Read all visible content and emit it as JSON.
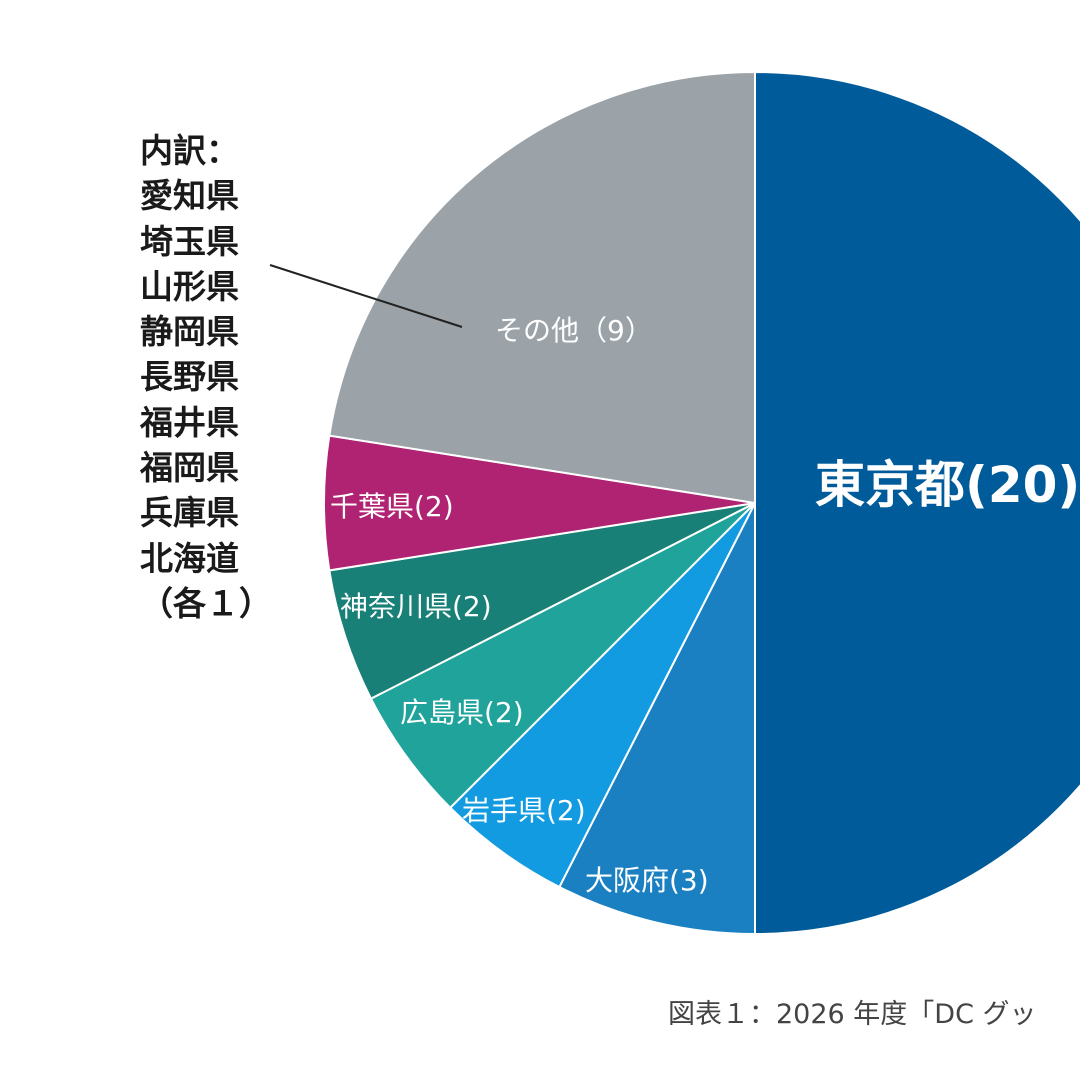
{
  "chart_data": {
    "type": "pie",
    "start_angle_deg": 0,
    "direction": "clockwise",
    "slices": [
      {
        "label": "東京都(20)",
        "value": 20,
        "color": "#005b9a"
      },
      {
        "label": "大阪府(3)",
        "value": 3,
        "color": "#1a80c2"
      },
      {
        "label": "岩手県(2)",
        "value": 2,
        "color": "#129be0"
      },
      {
        "label": "広島県(2)",
        "value": 2,
        "color": "#1fa39b"
      },
      {
        "label": "神奈川県(2)",
        "value": 2,
        "color": "#198078"
      },
      {
        "label": "千葉県(2)",
        "value": 2,
        "color": "#b02373"
      },
      {
        "label": "その他（9）",
        "value": 9,
        "color": "#9ba3a8"
      }
    ],
    "breakdown": {
      "title": "内訳：",
      "items": [
        "愛知県",
        "埼玉県",
        "山形県",
        "静岡県",
        "長野県",
        "福井県",
        "福岡県",
        "兵庫県",
        "北海道"
      ],
      "note": "（各１）"
    },
    "caption": "図表１：2026 年度「DC グッ"
  }
}
